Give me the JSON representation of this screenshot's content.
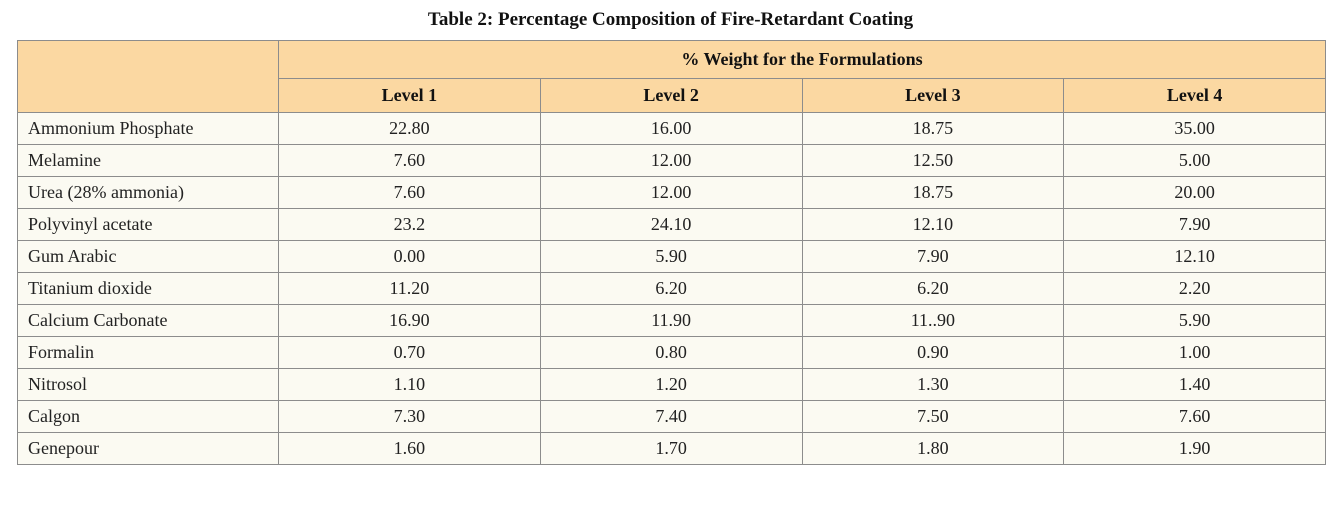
{
  "caption": "Table 2: Percentage Composition of Fire-Retardant Coating",
  "group_header": "% Weight for the Formulations",
  "columns": [
    "Level 1",
    "Level 2",
    "Level 3",
    "Level 4"
  ],
  "rows": [
    {
      "name": "Ammonium Phosphate",
      "values": [
        "22.80",
        "16.00",
        "18.75",
        "35.00"
      ]
    },
    {
      "name": "Melamine",
      "values": [
        "7.60",
        "12.00",
        "12.50",
        "5.00"
      ]
    },
    {
      "name": "Urea (28% ammonia)",
      "values": [
        "7.60",
        "12.00",
        "18.75",
        "20.00"
      ]
    },
    {
      "name": "Polyvinyl acetate",
      "values": [
        "23.2",
        "24.10",
        "12.10",
        "7.90"
      ]
    },
    {
      "name": "Gum Arabic",
      "values": [
        "0.00",
        "5.90",
        "7.90",
        "12.10"
      ]
    },
    {
      "name": "Titanium dioxide",
      "values": [
        "11.20",
        "6.20",
        "6.20",
        "2.20"
      ]
    },
    {
      "name": "Calcium Carbonate",
      "values": [
        "16.90",
        "11.90",
        "11..90",
        "5.90"
      ]
    },
    {
      "name": "Formalin",
      "values": [
        "0.70",
        "0.80",
        "0.90",
        "1.00"
      ]
    },
    {
      "name": "Nitrosol",
      "values": [
        "1.10",
        "1.20",
        "1.30",
        "1.40"
      ]
    },
    {
      "name": "Calgon",
      "values": [
        "7.30",
        "7.40",
        "7.50",
        "7.60"
      ]
    },
    {
      "name": "Genepour",
      "values": [
        "1.60",
        "1.70",
        "1.80",
        "1.90"
      ]
    }
  ],
  "colors": {
    "header_fill": "#fbd8a2",
    "body_fill": "#fbfaf2",
    "border": "#8c8c8c"
  }
}
